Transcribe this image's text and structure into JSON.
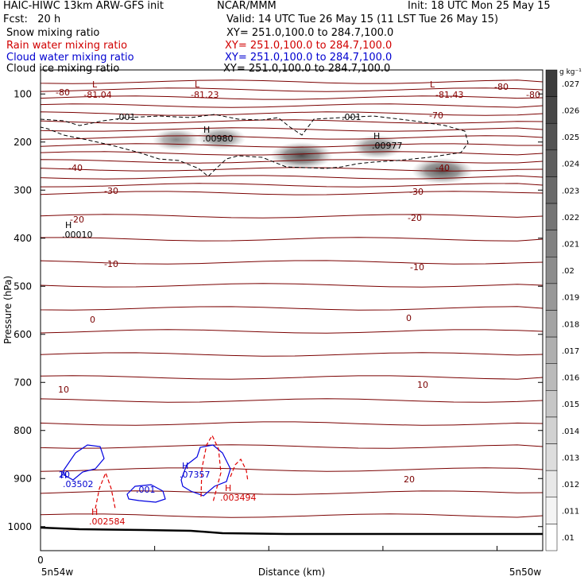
{
  "header": {
    "model": "HAIC-HIWC 13km ARW-GFS init",
    "org": "NCAR/MMM",
    "init": "Init: 18 UTC Mon 25 May 15",
    "fcst": "Fcst:   20 h",
    "valid": "Valid: 14 UTC Tue 26 May 15 (11 LST Tue 26 May 15)"
  },
  "fields": [
    {
      "name": "Snow mixing ratio",
      "xy": "XY= 251.0,100.0 to 284.7,100.0",
      "color": "#000000"
    },
    {
      "name": "Rain water mixing ratio",
      "xy": "XY= 251.0,100.0 to 284.7,100.0",
      "color": "#d10000"
    },
    {
      "name": "Cloud water mixing ratio",
      "xy": "XY= 251.0,100.0 to 284.7,100.0",
      "color": "#0000d0"
    },
    {
      "name": "Cloud ice mixing ratio",
      "xy": "XY= 251.0,100.0 to 284.7,100.0",
      "color": "#000000"
    }
  ],
  "chart_data": {
    "type": "heatmap",
    "ylabel": "Pressure (hPa)",
    "xlabel": "Distance (km)",
    "y_ticks": [
      100,
      200,
      300,
      400,
      500,
      600,
      700,
      800,
      900,
      1000
    ],
    "ylim": [
      1050,
      50
    ],
    "x_start_label": "0",
    "x_left_label": "5n54w",
    "x_right_label": "5n50w",
    "colorbar": {
      "unit": "g kg⁻¹",
      "ticks": [
        ".027",
        ".026",
        ".025",
        ".024",
        ".023",
        ".022",
        ".021",
        ".02",
        ".019",
        ".018",
        ".017",
        ".016",
        ".015",
        ".014",
        ".013",
        ".012",
        ".011",
        ".01"
      ]
    },
    "temperature_labels": [
      "-80",
      "-70",
      "-40",
      "-30",
      "-20",
      "-10",
      "0",
      "10",
      "20"
    ],
    "extrema_labels": [
      {
        "type": "L",
        "value": "-81.04"
      },
      {
        "type": "L",
        "value": "-81.23"
      },
      {
        "type": "L",
        "value": "-81.43"
      },
      {
        "type": "H",
        "value": ".00980"
      },
      {
        "type": "H",
        "value": ".00977"
      },
      {
        "type": "H",
        "value": ".00010"
      },
      {
        "type": "H",
        "value": ".03502"
      },
      {
        "type": "H",
        "value": ".07357"
      },
      {
        "type": "H",
        "value": ".003494"
      },
      {
        "type": "H",
        "value": ".002584"
      }
    ],
    "contour_labels": [
      ".001",
      ".001",
      ".001",
      "20"
    ],
    "ice_cores": [
      {
        "x_frac": 0.27,
        "p": 195,
        "level": 0.35
      },
      {
        "x_frac": 0.36,
        "p": 192,
        "level": 0.4
      },
      {
        "x_frac": 0.52,
        "p": 228,
        "level": 0.8
      },
      {
        "x_frac": 0.67,
        "p": 210,
        "level": 0.5
      },
      {
        "x_frac": 0.8,
        "p": 260,
        "level": 0.75
      }
    ]
  }
}
